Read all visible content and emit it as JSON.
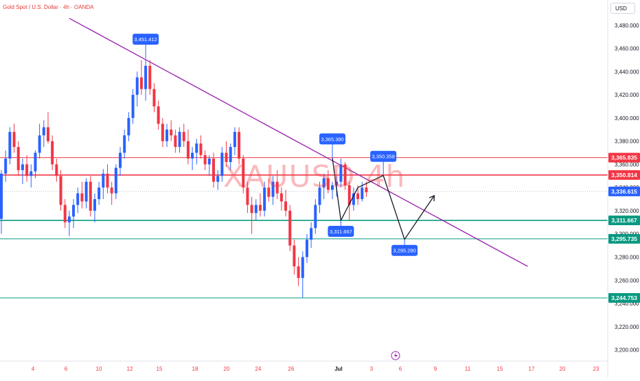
{
  "header": {
    "symbol_title": "Gold Spot / U.S. Dollar · 4h · OANDA",
    "currency": "USD"
  },
  "watermark": "XAUUSD 4h",
  "colors": {
    "up": "#2962ff",
    "down": "#f23645",
    "trendline": "#9c27b0",
    "support": "#089981",
    "resistance": "#f23645",
    "callout": "#2962ff",
    "current_price": "#2962ff",
    "axis_text": "#131722",
    "date_text": "#f23645"
  },
  "chart_data": {
    "type": "candlestick",
    "title": "Gold Spot / U.S. Dollar · 4h · OANDA",
    "y_axis": {
      "ticks": [
        "3,200.000",
        "3,220.000",
        "3,240.000",
        "3,260.000",
        "3,280.000",
        "3,300.000",
        "3,320.000",
        "3,340.000",
        "3,360.000",
        "3,380.000",
        "3,400.000",
        "3,420.000",
        "3,440.000",
        "3,460.000",
        "3,480.000"
      ],
      "tick_values": [
        3200,
        3220,
        3240,
        3260,
        3280,
        3300,
        3320,
        3340,
        3360,
        3380,
        3400,
        3420,
        3440,
        3460,
        3480
      ],
      "range": [
        3195,
        3487
      ]
    },
    "x_axis": {
      "labels": [
        "4",
        "6",
        "10",
        "12",
        "15",
        "18",
        "20",
        "24",
        "26",
        "Jul",
        "3",
        "6",
        "9",
        "11",
        "15",
        "17",
        "20",
        "23"
      ]
    },
    "candles": [
      {
        "o": 3313,
        "h": 3355,
        "l": 3300,
        "c": 3352
      },
      {
        "o": 3352,
        "h": 3372,
        "l": 3345,
        "c": 3365
      },
      {
        "o": 3365,
        "h": 3392,
        "l": 3360,
        "c": 3388
      },
      {
        "o": 3388,
        "h": 3395,
        "l": 3370,
        "c": 3375
      },
      {
        "o": 3375,
        "h": 3380,
        "l": 3350,
        "c": 3355
      },
      {
        "o": 3355,
        "h": 3365,
        "l": 3343,
        "c": 3360
      },
      {
        "o": 3360,
        "h": 3368,
        "l": 3345,
        "c": 3350
      },
      {
        "o": 3350,
        "h": 3360,
        "l": 3340,
        "c": 3354
      },
      {
        "o": 3354,
        "h": 3372,
        "l": 3348,
        "c": 3370
      },
      {
        "o": 3370,
        "h": 3395,
        "l": 3365,
        "c": 3385
      },
      {
        "o": 3385,
        "h": 3398,
        "l": 3375,
        "c": 3392
      },
      {
        "o": 3392,
        "h": 3405,
        "l": 3378,
        "c": 3380
      },
      {
        "o": 3380,
        "h": 3385,
        "l": 3355,
        "c": 3360
      },
      {
        "o": 3360,
        "h": 3365,
        "l": 3345,
        "c": 3350
      },
      {
        "o": 3350,
        "h": 3355,
        "l": 3320,
        "c": 3325
      },
      {
        "o": 3325,
        "h": 3330,
        "l": 3305,
        "c": 3310
      },
      {
        "o": 3310,
        "h": 3320,
        "l": 3298,
        "c": 3315
      },
      {
        "o": 3315,
        "h": 3330,
        "l": 3305,
        "c": 3325
      },
      {
        "o": 3325,
        "h": 3340,
        "l": 3318,
        "c": 3335
      },
      {
        "o": 3335,
        "h": 3345,
        "l": 3322,
        "c": 3328
      },
      {
        "o": 3328,
        "h": 3348,
        "l": 3322,
        "c": 3345
      },
      {
        "o": 3345,
        "h": 3350,
        "l": 3315,
        "c": 3320
      },
      {
        "o": 3320,
        "h": 3335,
        "l": 3310,
        "c": 3330
      },
      {
        "o": 3330,
        "h": 3345,
        "l": 3325,
        "c": 3340
      },
      {
        "o": 3340,
        "h": 3356,
        "l": 3330,
        "c": 3352
      },
      {
        "o": 3352,
        "h": 3360,
        "l": 3335,
        "c": 3340
      },
      {
        "o": 3340,
        "h": 3345,
        "l": 3325,
        "c": 3335
      },
      {
        "o": 3335,
        "h": 3360,
        "l": 3330,
        "c": 3357
      },
      {
        "o": 3357,
        "h": 3375,
        "l": 3350,
        "c": 3370
      },
      {
        "o": 3370,
        "h": 3390,
        "l": 3365,
        "c": 3385
      },
      {
        "o": 3385,
        "h": 3405,
        "l": 3380,
        "c": 3400
      },
      {
        "o": 3400,
        "h": 3425,
        "l": 3395,
        "c": 3420
      },
      {
        "o": 3420,
        "h": 3440,
        "l": 3410,
        "c": 3435
      },
      {
        "o": 3435,
        "h": 3450,
        "l": 3420,
        "c": 3425
      },
      {
        "o": 3425,
        "h": 3451,
        "l": 3415,
        "c": 3445
      },
      {
        "o": 3445,
        "h": 3450,
        "l": 3420,
        "c": 3425
      },
      {
        "o": 3425,
        "h": 3430,
        "l": 3405,
        "c": 3410
      },
      {
        "o": 3410,
        "h": 3415,
        "l": 3390,
        "c": 3395
      },
      {
        "o": 3395,
        "h": 3400,
        "l": 3375,
        "c": 3380
      },
      {
        "o": 3380,
        "h": 3395,
        "l": 3375,
        "c": 3390
      },
      {
        "o": 3390,
        "h": 3398,
        "l": 3380,
        "c": 3385
      },
      {
        "o": 3385,
        "h": 3390,
        "l": 3370,
        "c": 3375
      },
      {
        "o": 3375,
        "h": 3392,
        "l": 3370,
        "c": 3388
      },
      {
        "o": 3388,
        "h": 3395,
        "l": 3375,
        "c": 3380
      },
      {
        "o": 3380,
        "h": 3390,
        "l": 3360,
        "c": 3365
      },
      {
        "o": 3365,
        "h": 3375,
        "l": 3355,
        "c": 3370
      },
      {
        "o": 3370,
        "h": 3382,
        "l": 3360,
        "c": 3378
      },
      {
        "o": 3378,
        "h": 3385,
        "l": 3365,
        "c": 3368
      },
      {
        "o": 3368,
        "h": 3372,
        "l": 3355,
        "c": 3360
      },
      {
        "o": 3360,
        "h": 3368,
        "l": 3350,
        "c": 3365
      },
      {
        "o": 3365,
        "h": 3370,
        "l": 3340,
        "c": 3345
      },
      {
        "o": 3345,
        "h": 3355,
        "l": 3338,
        "c": 3350
      },
      {
        "o": 3350,
        "h": 3375,
        "l": 3345,
        "c": 3370
      },
      {
        "o": 3370,
        "h": 3380,
        "l": 3358,
        "c": 3362
      },
      {
        "o": 3362,
        "h": 3378,
        "l": 3355,
        "c": 3375
      },
      {
        "o": 3375,
        "h": 3392,
        "l": 3368,
        "c": 3388
      },
      {
        "o": 3388,
        "h": 3392,
        "l": 3360,
        "c": 3365
      },
      {
        "o": 3365,
        "h": 3368,
        "l": 3335,
        "c": 3340
      },
      {
        "o": 3340,
        "h": 3345,
        "l": 3318,
        "c": 3325
      },
      {
        "o": 3325,
        "h": 3332,
        "l": 3300,
        "c": 3318
      },
      {
        "o": 3318,
        "h": 3330,
        "l": 3312,
        "c": 3325
      },
      {
        "o": 3325,
        "h": 3335,
        "l": 3315,
        "c": 3320
      },
      {
        "o": 3320,
        "h": 3345,
        "l": 3315,
        "c": 3340
      },
      {
        "o": 3340,
        "h": 3348,
        "l": 3328,
        "c": 3332
      },
      {
        "o": 3332,
        "h": 3350,
        "l": 3325,
        "c": 3345
      },
      {
        "o": 3345,
        "h": 3355,
        "l": 3330,
        "c": 3335
      },
      {
        "o": 3335,
        "h": 3340,
        "l": 3320,
        "c": 3328
      },
      {
        "o": 3328,
        "h": 3338,
        "l": 3315,
        "c": 3320
      },
      {
        "o": 3320,
        "h": 3325,
        "l": 3285,
        "c": 3290
      },
      {
        "o": 3290,
        "h": 3295,
        "l": 3265,
        "c": 3272
      },
      {
        "o": 3272,
        "h": 3280,
        "l": 3255,
        "c": 3262
      },
      {
        "o": 3262,
        "h": 3285,
        "l": 3245,
        "c": 3280
      },
      {
        "o": 3280,
        "h": 3300,
        "l": 3275,
        "c": 3295
      },
      {
        "o": 3295,
        "h": 3310,
        "l": 3288,
        "c": 3305
      },
      {
        "o": 3305,
        "h": 3330,
        "l": 3300,
        "c": 3325
      },
      {
        "o": 3325,
        "h": 3345,
        "l": 3318,
        "c": 3340
      },
      {
        "o": 3340,
        "h": 3352,
        "l": 3330,
        "c": 3348
      },
      {
        "o": 3348,
        "h": 3355,
        "l": 3335,
        "c": 3338
      },
      {
        "o": 3338,
        "h": 3345,
        "l": 3330,
        "c": 3342
      },
      {
        "o": 3342,
        "h": 3350,
        "l": 3332,
        "c": 3345
      },
      {
        "o": 3345,
        "h": 3365,
        "l": 3340,
        "c": 3360
      },
      {
        "o": 3360,
        "h": 3362,
        "l": 3338,
        "c": 3342
      },
      {
        "o": 3342,
        "h": 3345,
        "l": 3312,
        "c": 3325
      },
      {
        "o": 3325,
        "h": 3340,
        "l": 3320,
        "c": 3335
      },
      {
        "o": 3335,
        "h": 3342,
        "l": 3325,
        "c": 3330
      },
      {
        "o": 3330,
        "h": 3345,
        "l": 3328,
        "c": 3340
      },
      {
        "o": 3340,
        "h": 3345,
        "l": 3332,
        "c": 3336
      }
    ],
    "horizontal_lines": [
      {
        "price": 3365.835,
        "label": "3,365.835",
        "kind": "resistance"
      },
      {
        "price": 3350.814,
        "label": "3,350.814",
        "kind": "resistance"
      },
      {
        "price": 3336.615,
        "label": "3,336.615",
        "kind": "current"
      },
      {
        "price": 3311.667,
        "label": "3,311.667",
        "kind": "support"
      },
      {
        "price": 3295.735,
        "label": "3,295.735",
        "kind": "support"
      },
      {
        "price": 3244.753,
        "label": "3,244.753",
        "kind": "support"
      }
    ],
    "callouts": [
      {
        "label": "3,451.412",
        "price": 3451.412,
        "candle": 34,
        "side": "above"
      },
      {
        "label": "3,365.380",
        "price": 3365.38,
        "candle": 78,
        "side": "above"
      },
      {
        "label": "3,350.358",
        "price": 3350.358,
        "candle": 90,
        "side": "above"
      },
      {
        "label": "3,311.667",
        "price": 3311.667,
        "candle": 80,
        "side": "below"
      },
      {
        "label": "3,295.280",
        "price": 3295.28,
        "candle": 95,
        "side": "below"
      }
    ],
    "trendline": {
      "from": {
        "candle": 16,
        "price": 3486
      },
      "to": {
        "candle": 124,
        "price": 3272
      }
    },
    "projection": [
      {
        "candle": 80,
        "price": 3311.667
      },
      {
        "candle": 84,
        "price": 3340
      },
      {
        "candle": 90,
        "price": 3350.358
      },
      {
        "candle": 95,
        "price": 3295.28
      },
      {
        "candle": 102,
        "price": 3333
      }
    ],
    "zigzag": [
      {
        "candle": 78,
        "price": 3365.38
      },
      {
        "candle": 80,
        "price": 3311.667
      }
    ]
  }
}
